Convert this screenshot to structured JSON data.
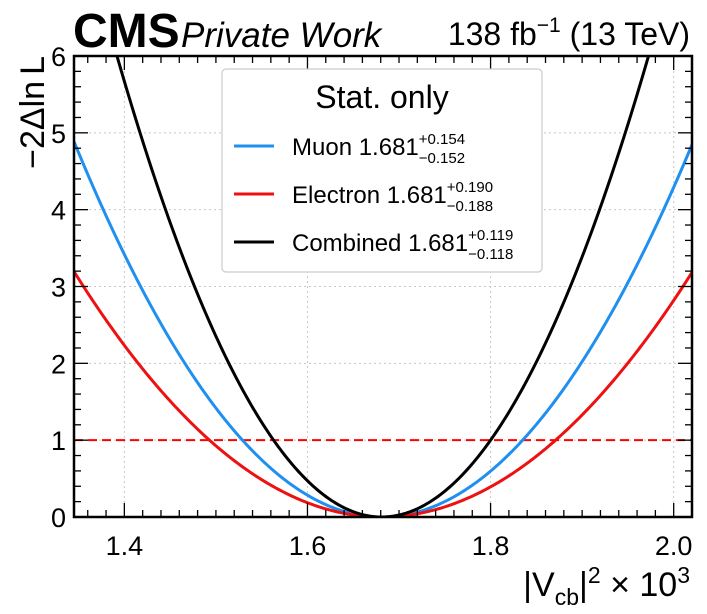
{
  "header": {
    "cms": "CMS",
    "private": "Private Work",
    "lumi_value": "138 fb",
    "lumi_exp": "−1",
    "energy": "(13 TeV)"
  },
  "legend": {
    "title": "Stat. only"
  },
  "chart_data": {
    "type": "line",
    "xlabel": {
      "base": "|V",
      "sub": "cb",
      "mid": "|",
      "sup": "2",
      "rest": " × 10",
      "sup2": "3"
    },
    "ylabel": {
      "pre": "−2Δln",
      "post": "L"
    },
    "xlim": [
      1.345,
      2.02
    ],
    "ylim": [
      0,
      6
    ],
    "x_ticks": [
      1.4,
      1.6,
      1.8,
      2.0
    ],
    "x_tick_labels": [
      "1.4",
      "1.6",
      "1.8",
      "2.0"
    ],
    "y_ticks": [
      0,
      1,
      2,
      3,
      4,
      5,
      6
    ],
    "y_tick_labels": [
      "0",
      "1",
      "2",
      "3",
      "4",
      "5",
      "6"
    ],
    "grid": true,
    "legend_position": "top-center",
    "reference_line": {
      "y": 1,
      "style": "dashed",
      "color": "#ff0000"
    },
    "series": [
      {
        "name": "Muon",
        "central": "1.681",
        "up": "+0.154",
        "down": "−0.152",
        "color": "#1f8ff0",
        "center": 1.681,
        "err_up": 0.154,
        "err_down": 0.152
      },
      {
        "name": "Electron",
        "central": "1.681",
        "up": "+0.190",
        "down": "−0.188",
        "color": "#ee1111",
        "center": 1.681,
        "err_up": 0.19,
        "err_down": 0.188
      },
      {
        "name": "Combined",
        "central": "1.681",
        "up": "+0.119",
        "down": "−0.118",
        "color": "#000000",
        "center": 1.681,
        "err_up": 0.119,
        "err_down": 0.118
      }
    ]
  }
}
